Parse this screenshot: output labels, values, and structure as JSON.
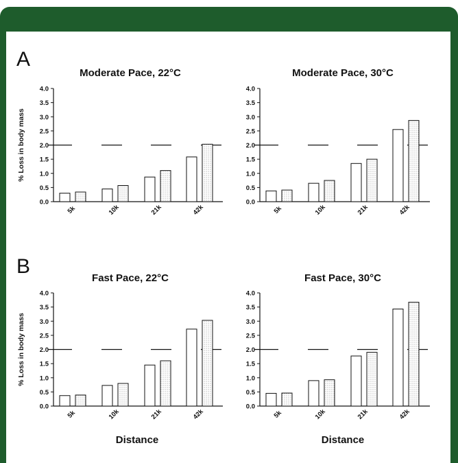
{
  "panels": [
    {
      "letter": "A"
    },
    {
      "letter": "B"
    }
  ],
  "colors": {
    "frame": "#1e5c2c",
    "bar_fill": "#ffffff",
    "bar_dotted": "#d8d8d8",
    "ink": "#111111"
  },
  "chart_data": [
    {
      "type": "bar",
      "title": "Moderate Pace, 22°C",
      "ylabel": "% Loss in body mass",
      "xlabel": "",
      "ylim": [
        0,
        4
      ],
      "yticks": [
        "0.0",
        "0.5",
        "1.0",
        "1.5",
        "2.0",
        "2.5",
        "3.0",
        "3.5",
        "4.0"
      ],
      "categories": [
        "5k",
        "10k",
        "21k",
        "42k"
      ],
      "series": [
        {
          "style": "open",
          "values": [
            0.3,
            0.45,
            0.87,
            1.58
          ]
        },
        {
          "style": "dotted",
          "values": [
            0.34,
            0.57,
            1.1,
            2.03
          ]
        }
      ],
      "reference_line": 2.0
    },
    {
      "type": "bar",
      "title": "Moderate Pace, 30°C",
      "ylabel": "",
      "xlabel": "",
      "ylim": [
        0,
        4
      ],
      "yticks": [
        "0.0",
        "0.5",
        "1.0",
        "1.5",
        "2.0",
        "2.5",
        "3.0",
        "3.5",
        "4.0"
      ],
      "categories": [
        "5k",
        "10k",
        "21k",
        "42k"
      ],
      "series": [
        {
          "style": "open",
          "values": [
            0.38,
            0.65,
            1.35,
            2.55
          ]
        },
        {
          "style": "dotted",
          "values": [
            0.41,
            0.75,
            1.5,
            2.87
          ]
        }
      ],
      "reference_line": 2.0
    },
    {
      "type": "bar",
      "title": "Fast Pace, 22°C",
      "ylabel": "% Loss in body mass",
      "xlabel": "Distance",
      "ylim": [
        0,
        4
      ],
      "yticks": [
        "0.0",
        "0.5",
        "1.0",
        "1.5",
        "2.0",
        "2.5",
        "3.0",
        "3.5",
        "4.0"
      ],
      "categories": [
        "5k",
        "10k",
        "21k",
        "42k"
      ],
      "series": [
        {
          "style": "open",
          "values": [
            0.37,
            0.73,
            1.45,
            2.72
          ]
        },
        {
          "style": "dotted",
          "values": [
            0.39,
            0.8,
            1.6,
            3.03
          ]
        }
      ],
      "reference_line": 2.0
    },
    {
      "type": "bar",
      "title": "Fast Pace, 30°C",
      "ylabel": "",
      "xlabel": "Distance",
      "ylim": [
        0,
        4
      ],
      "yticks": [
        "0.0",
        "0.5",
        "1.0",
        "1.5",
        "2.0",
        "2.5",
        "3.0",
        "3.5",
        "4.0"
      ],
      "categories": [
        "5k",
        "10k",
        "21k",
        "42k"
      ],
      "series": [
        {
          "style": "open",
          "values": [
            0.45,
            0.9,
            1.77,
            3.43
          ]
        },
        {
          "style": "dotted",
          "values": [
            0.46,
            0.93,
            1.9,
            3.67
          ]
        }
      ],
      "reference_line": 2.0
    }
  ]
}
